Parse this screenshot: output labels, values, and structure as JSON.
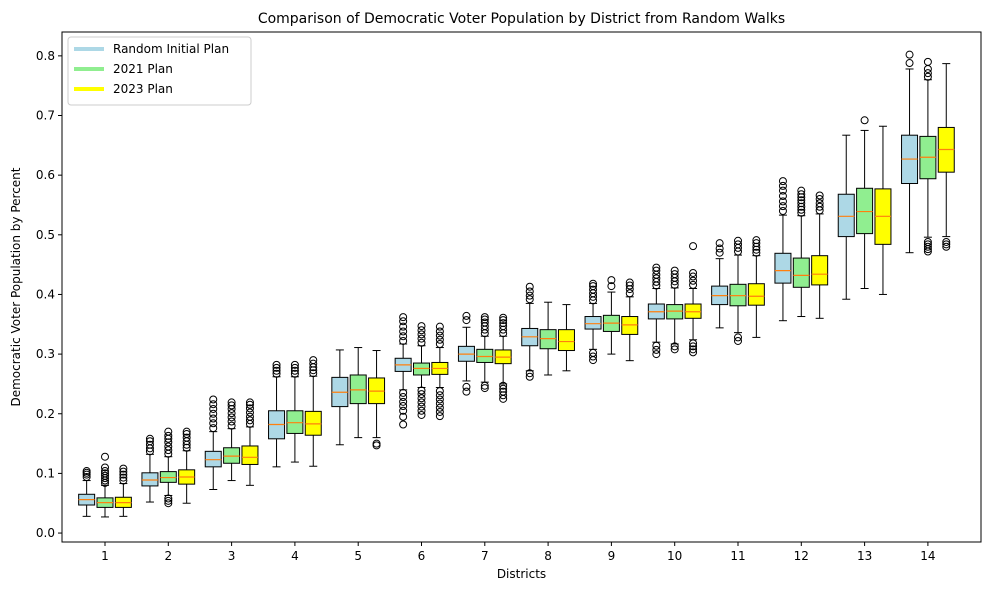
{
  "chart_data": {
    "type": "box",
    "title": "Comparison of Democratic Voter Population by District from Random Walks",
    "xlabel": "Districts",
    "ylabel": "Democratic Voter Population by Percent",
    "ylim": [
      -0.015,
      0.84
    ],
    "yticks": [
      0.0,
      0.1,
      0.2,
      0.3,
      0.4,
      0.5,
      0.6,
      0.7,
      0.8
    ],
    "ytick_labels": [
      "0.0",
      "0.1",
      "0.2",
      "0.3",
      "0.4",
      "0.5",
      "0.6",
      "0.7",
      "0.8"
    ],
    "categories": [
      "1",
      "2",
      "3",
      "4",
      "5",
      "6",
      "7",
      "8",
      "9",
      "10",
      "11",
      "12",
      "13",
      "14"
    ],
    "grid": false,
    "legend_position": "top-left",
    "median_color": "#ff7f0e",
    "series": [
      {
        "name": "Random Initial Plan",
        "color": "#add8e6",
        "boxes": [
          {
            "whislo": 0.028,
            "q1": 0.047,
            "med": 0.056,
            "q3": 0.065,
            "whishi": 0.088,
            "outliers_low": [],
            "outliers_high": [
              0.094,
              0.098,
              0.101,
              0.104
            ]
          },
          {
            "whislo": 0.052,
            "q1": 0.079,
            "med": 0.089,
            "q3": 0.101,
            "whishi": 0.132,
            "outliers_low": [],
            "outliers_high": [
              0.137,
              0.142,
              0.148,
              0.154,
              0.158
            ]
          },
          {
            "whislo": 0.073,
            "q1": 0.111,
            "med": 0.123,
            "q3": 0.137,
            "whishi": 0.17,
            "outliers_low": [],
            "outliers_high": [
              0.176,
              0.184,
              0.192,
              0.2,
              0.208,
              0.216,
              0.224
            ]
          },
          {
            "whislo": 0.111,
            "q1": 0.158,
            "med": 0.182,
            "q3": 0.205,
            "whishi": 0.262,
            "outliers_low": [],
            "outliers_high": [
              0.267,
              0.272,
              0.277,
              0.282
            ]
          },
          {
            "whislo": 0.148,
            "q1": 0.212,
            "med": 0.236,
            "q3": 0.261,
            "whishi": 0.307,
            "outliers_low": [],
            "outliers_high": []
          },
          {
            "whislo": 0.24,
            "q1": 0.271,
            "med": 0.282,
            "q3": 0.293,
            "whishi": 0.317,
            "outliers_low": [
              0.182,
              0.195,
              0.205,
              0.213,
              0.22,
              0.228,
              0.235
            ],
            "outliers_high": [
              0.322,
              0.33,
              0.338,
              0.346,
              0.355,
              0.362
            ]
          },
          {
            "whislo": 0.255,
            "q1": 0.288,
            "med": 0.3,
            "q3": 0.313,
            "whishi": 0.345,
            "outliers_low": [
              0.237,
              0.245
            ],
            "outliers_high": [
              0.357,
              0.364
            ]
          },
          {
            "whislo": 0.272,
            "q1": 0.314,
            "med": 0.329,
            "q3": 0.343,
            "whishi": 0.385,
            "outliers_low": [
              0.262,
              0.268
            ],
            "outliers_high": [
              0.392,
              0.398,
              0.405,
              0.413
            ]
          },
          {
            "whislo": 0.308,
            "q1": 0.342,
            "med": 0.351,
            "q3": 0.363,
            "whishi": 0.385,
            "outliers_low": [
              0.29,
              0.296,
              0.302
            ],
            "outliers_high": [
              0.39,
              0.396,
              0.402,
              0.408,
              0.414,
              0.418
            ]
          },
          {
            "whislo": 0.32,
            "q1": 0.359,
            "med": 0.371,
            "q3": 0.384,
            "whishi": 0.41,
            "outliers_low": [
              0.3,
              0.307,
              0.314
            ],
            "outliers_high": [
              0.415,
              0.421,
              0.427,
              0.433,
              0.44,
              0.445
            ]
          },
          {
            "whislo": 0.344,
            "q1": 0.383,
            "med": 0.398,
            "q3": 0.414,
            "whishi": 0.46,
            "outliers_low": [],
            "outliers_high": [
              0.47,
              0.477,
              0.486
            ]
          },
          {
            "whislo": 0.356,
            "q1": 0.419,
            "med": 0.44,
            "q3": 0.469,
            "whishi": 0.533,
            "outliers_low": [],
            "outliers_high": [
              0.54,
              0.548,
              0.556,
              0.565,
              0.574,
              0.582,
              0.59
            ]
          },
          {
            "whislo": 0.392,
            "q1": 0.497,
            "med": 0.531,
            "q3": 0.568,
            "whishi": 0.667,
            "outliers_low": [],
            "outliers_high": []
          },
          {
            "whislo": 0.47,
            "q1": 0.586,
            "med": 0.627,
            "q3": 0.667,
            "whishi": 0.778,
            "outliers_low": [],
            "outliers_high": [
              0.788,
              0.802
            ]
          }
        ]
      },
      {
        "name": "2021 Plan",
        "color": "#90ee90",
        "boxes": [
          {
            "whislo": 0.027,
            "q1": 0.043,
            "med": 0.051,
            "q3": 0.059,
            "whishi": 0.08,
            "outliers_low": [],
            "outliers_high": [
              0.084,
              0.088,
              0.092,
              0.096,
              0.1,
              0.104,
              0.11,
              0.128
            ]
          },
          {
            "whislo": 0.063,
            "q1": 0.085,
            "med": 0.093,
            "q3": 0.103,
            "whishi": 0.128,
            "outliers_low": [
              0.05,
              0.054,
              0.058
            ],
            "outliers_high": [
              0.133,
              0.139,
              0.145,
              0.152,
              0.158,
              0.163,
              0.17
            ]
          },
          {
            "whislo": 0.088,
            "q1": 0.117,
            "med": 0.129,
            "q3": 0.143,
            "whishi": 0.175,
            "outliers_low": [],
            "outliers_high": [
              0.18,
              0.187,
              0.194,
              0.201,
              0.208,
              0.214,
              0.219
            ]
          },
          {
            "whislo": 0.119,
            "q1": 0.167,
            "med": 0.185,
            "q3": 0.205,
            "whishi": 0.262,
            "outliers_low": [],
            "outliers_high": [
              0.267,
              0.272,
              0.277,
              0.282
            ]
          },
          {
            "whislo": 0.16,
            "q1": 0.217,
            "med": 0.24,
            "q3": 0.265,
            "whishi": 0.311,
            "outliers_low": [],
            "outliers_high": []
          },
          {
            "whislo": 0.244,
            "q1": 0.265,
            "med": 0.276,
            "q3": 0.285,
            "whishi": 0.314,
            "outliers_low": [
              0.198,
              0.205,
              0.212,
              0.219,
              0.226,
              0.233,
              0.239
            ],
            "outliers_high": [
              0.319,
              0.326,
              0.333,
              0.34,
              0.347
            ]
          },
          {
            "whislo": 0.253,
            "q1": 0.286,
            "med": 0.296,
            "q3": 0.308,
            "whishi": 0.33,
            "outliers_low": [
              0.243,
              0.247
            ],
            "outliers_high": [
              0.335,
              0.341,
              0.347,
              0.353,
              0.358,
              0.362
            ]
          },
          {
            "whislo": 0.265,
            "q1": 0.309,
            "med": 0.326,
            "q3": 0.341,
            "whishi": 0.387,
            "outliers_low": [],
            "outliers_high": []
          },
          {
            "whislo": 0.3,
            "q1": 0.338,
            "med": 0.352,
            "q3": 0.365,
            "whishi": 0.404,
            "outliers_low": [],
            "outliers_high": [
              0.414,
              0.424
            ]
          },
          {
            "whislo": 0.317,
            "q1": 0.359,
            "med": 0.372,
            "q3": 0.383,
            "whishi": 0.411,
            "outliers_low": [
              0.308,
              0.313
            ],
            "outliers_high": [
              0.416,
              0.422,
              0.428,
              0.434,
              0.44
            ]
          },
          {
            "whislo": 0.336,
            "q1": 0.381,
            "med": 0.398,
            "q3": 0.417,
            "whishi": 0.466,
            "outliers_low": [
              0.322,
              0.328
            ],
            "outliers_high": [
              0.472,
              0.478,
              0.484,
              0.49
            ]
          },
          {
            "whislo": 0.363,
            "q1": 0.412,
            "med": 0.432,
            "q3": 0.461,
            "whishi": 0.532,
            "outliers_low": [],
            "outliers_high": [
              0.537,
              0.542,
              0.547,
              0.553,
              0.558,
              0.563,
              0.568,
              0.574
            ]
          },
          {
            "whislo": 0.41,
            "q1": 0.502,
            "med": 0.539,
            "q3": 0.578,
            "whishi": 0.675,
            "outliers_low": [],
            "outliers_high": [
              0.692
            ]
          },
          {
            "whislo": 0.496,
            "q1": 0.594,
            "med": 0.63,
            "q3": 0.665,
            "whishi": 0.76,
            "outliers_low": [
              0.472,
              0.476,
              0.48,
              0.484,
              0.488
            ],
            "outliers_high": [
              0.765,
              0.771,
              0.778,
              0.79
            ]
          }
        ]
      },
      {
        "name": "2023 Plan",
        "color": "#ffff00",
        "boxes": [
          {
            "whislo": 0.028,
            "q1": 0.043,
            "med": 0.051,
            "q3": 0.06,
            "whishi": 0.083,
            "outliers_low": [],
            "outliers_high": [
              0.088,
              0.093,
              0.098,
              0.103,
              0.108
            ]
          },
          {
            "whislo": 0.05,
            "q1": 0.082,
            "med": 0.094,
            "q3": 0.106,
            "whishi": 0.138,
            "outliers_low": [],
            "outliers_high": [
              0.143,
              0.148,
              0.154,
              0.16,
              0.166,
              0.17
            ]
          },
          {
            "whislo": 0.08,
            "q1": 0.115,
            "med": 0.127,
            "q3": 0.146,
            "whishi": 0.178,
            "outliers_low": [],
            "outliers_high": [
              0.183,
              0.189,
              0.195,
              0.202,
              0.209,
              0.215,
              0.219
            ]
          },
          {
            "whislo": 0.112,
            "q1": 0.164,
            "med": 0.183,
            "q3": 0.204,
            "whishi": 0.263,
            "outliers_low": [],
            "outliers_high": [
              0.268,
              0.273,
              0.278,
              0.284,
              0.29
            ]
          },
          {
            "whislo": 0.16,
            "q1": 0.217,
            "med": 0.238,
            "q3": 0.26,
            "whishi": 0.306,
            "outliers_low": [
              0.147,
              0.15
            ],
            "outliers_high": []
          },
          {
            "whislo": 0.244,
            "q1": 0.266,
            "med": 0.276,
            "q3": 0.286,
            "whishi": 0.311,
            "outliers_low": [
              0.196,
              0.203,
              0.21,
              0.217,
              0.224,
              0.231,
              0.238
            ],
            "outliers_high": [
              0.317,
              0.324,
              0.331,
              0.338,
              0.346
            ]
          },
          {
            "whislo": 0.25,
            "q1": 0.284,
            "med": 0.295,
            "q3": 0.307,
            "whishi": 0.33,
            "outliers_low": [
              0.225,
              0.231,
              0.237,
              0.242,
              0.247
            ],
            "outliers_high": [
              0.335,
              0.341,
              0.347,
              0.352,
              0.357,
              0.361
            ]
          },
          {
            "whislo": 0.272,
            "q1": 0.306,
            "med": 0.321,
            "q3": 0.341,
            "whishi": 0.383,
            "outliers_low": [],
            "outliers_high": []
          },
          {
            "whislo": 0.289,
            "q1": 0.333,
            "med": 0.349,
            "q3": 0.363,
            "whishi": 0.396,
            "outliers_low": [],
            "outliers_high": [
              0.402,
              0.409,
              0.415,
              0.42
            ]
          },
          {
            "whislo": 0.324,
            "q1": 0.36,
            "med": 0.371,
            "q3": 0.384,
            "whishi": 0.41,
            "outliers_low": [
              0.303,
              0.308,
              0.313,
              0.318
            ],
            "outliers_high": [
              0.416,
              0.423,
              0.43,
              0.436,
              0.481
            ]
          },
          {
            "whislo": 0.328,
            "q1": 0.382,
            "med": 0.397,
            "q3": 0.418,
            "whishi": 0.465,
            "outliers_low": [],
            "outliers_high": [
              0.47,
              0.475,
              0.48,
              0.486,
              0.491
            ]
          },
          {
            "whislo": 0.36,
            "q1": 0.416,
            "med": 0.434,
            "q3": 0.465,
            "whishi": 0.535,
            "outliers_low": [],
            "outliers_high": [
              0.541,
              0.547,
              0.553,
              0.56,
              0.566
            ]
          },
          {
            "whislo": 0.4,
            "q1": 0.484,
            "med": 0.531,
            "q3": 0.577,
            "whishi": 0.682,
            "outliers_low": [],
            "outliers_high": []
          },
          {
            "whislo": 0.497,
            "q1": 0.605,
            "med": 0.643,
            "q3": 0.68,
            "whishi": 0.787,
            "outliers_low": [
              0.48,
              0.484,
              0.488
            ],
            "outliers_high": []
          }
        ]
      }
    ]
  }
}
